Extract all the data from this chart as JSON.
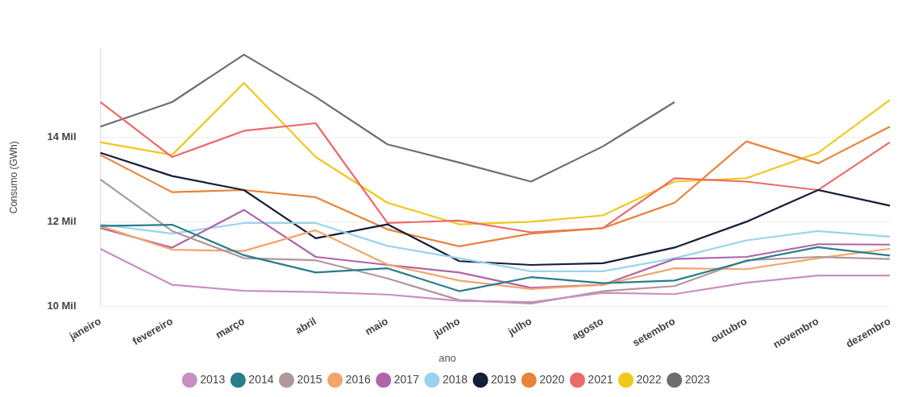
{
  "chart_data": {
    "type": "line",
    "ylabel": "Consumo (GWh)",
    "legend_title": "ano",
    "legend": "bottom",
    "grid": "y",
    "marker": "none",
    "categories": [
      "janeiro",
      "fevereiro",
      "março",
      "abril",
      "maio",
      "junho",
      "julho",
      "agosto",
      "setembro",
      "outubro",
      "novembro",
      "dezembro"
    ],
    "ylim": [
      10,
      16.1
    ],
    "yticks": [
      {
        "value": 10,
        "label": "10 Mil"
      },
      {
        "value": 12,
        "label": "12 Mil"
      },
      {
        "value": 14,
        "label": "14 Mil"
      }
    ],
    "series": [
      {
        "name": "2013",
        "color": "#c890c0",
        "values": [
          11.36,
          10.51,
          10.37,
          10.34,
          10.28,
          10.13,
          10.1,
          10.32,
          10.29,
          10.56,
          10.73,
          10.73
        ]
      },
      {
        "name": "2014",
        "color": "#2a7d8c",
        "values": [
          11.9,
          11.93,
          11.21,
          10.8,
          10.9,
          10.36,
          10.69,
          10.55,
          10.61,
          11.07,
          11.4,
          11.2
        ]
      },
      {
        "name": "2015",
        "color": "#b0989a",
        "values": [
          13.0,
          11.78,
          11.14,
          11.09,
          10.66,
          10.15,
          10.07,
          10.36,
          10.48,
          11.09,
          11.17,
          11.12
        ]
      },
      {
        "name": "2016",
        "color": "#f4a56c",
        "values": [
          11.9,
          11.34,
          11.31,
          11.8,
          10.99,
          10.61,
          10.41,
          10.51,
          10.9,
          10.88,
          11.14,
          11.36
        ]
      },
      {
        "name": "2017",
        "color": "#b064a8",
        "values": [
          11.85,
          11.39,
          12.28,
          11.17,
          10.98,
          10.8,
          10.44,
          10.51,
          11.12,
          11.17,
          11.47,
          11.46
        ]
      },
      {
        "name": "2018",
        "color": "#9ad4ec",
        "values": [
          11.94,
          11.72,
          11.97,
          11.97,
          11.43,
          11.14,
          10.83,
          10.83,
          11.14,
          11.56,
          11.78,
          11.65
        ]
      },
      {
        "name": "2019",
        "color": "#141e38",
        "values": [
          13.63,
          13.08,
          12.75,
          11.61,
          11.94,
          11.07,
          10.98,
          11.02,
          11.39,
          12.0,
          12.75,
          12.38
        ]
      },
      {
        "name": "2020",
        "color": "#e8833a",
        "values": [
          13.58,
          12.7,
          12.75,
          12.58,
          11.82,
          11.42,
          11.72,
          11.85,
          12.45,
          13.9,
          13.38,
          14.25
        ]
      },
      {
        "name": "2021",
        "color": "#ec6a68",
        "values": [
          14.83,
          13.53,
          14.15,
          14.33,
          11.97,
          12.03,
          11.75,
          11.85,
          13.03,
          12.95,
          12.75,
          13.88
        ]
      },
      {
        "name": "2022",
        "color": "#f0c81c",
        "values": [
          13.88,
          13.58,
          15.28,
          13.53,
          12.45,
          11.94,
          12.0,
          12.15,
          12.95,
          13.03,
          13.63,
          14.88
        ]
      },
      {
        "name": "2023",
        "color": "#6e6e6e",
        "values": [
          14.25,
          14.83,
          15.95,
          14.95,
          13.83,
          13.4,
          12.95,
          13.78,
          14.83,
          null,
          null,
          null
        ]
      }
    ]
  }
}
